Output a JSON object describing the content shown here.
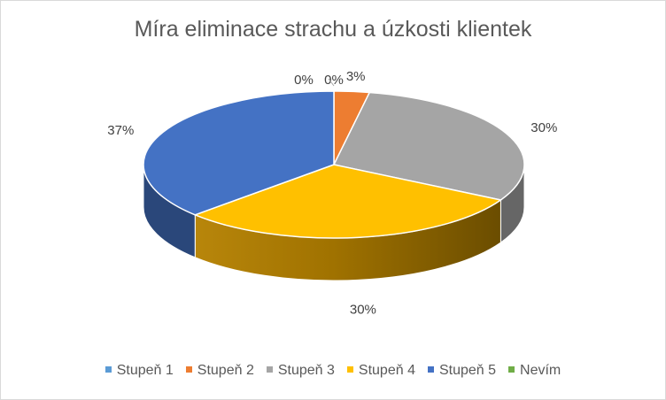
{
  "chart_data": {
    "type": "pie",
    "title": "Míra eliminace strachu a úzkosti klientek",
    "categories": [
      "Stupeň 1",
      "Stupeň 2",
      "Stupeň 3",
      "Stupeň 4",
      "Stupeň 5",
      "Nevím"
    ],
    "values": [
      0,
      3,
      30,
      30,
      37,
      0
    ],
    "data_labels": [
      "0%",
      "3%",
      "30%",
      "30%",
      "37%",
      "0%"
    ],
    "colors": [
      "#5B9BD5",
      "#ED7D31",
      "#A5A5A5",
      "#FFC000",
      "#4472C4",
      "#70AD47"
    ],
    "style": "3d",
    "legend": "bottom"
  }
}
